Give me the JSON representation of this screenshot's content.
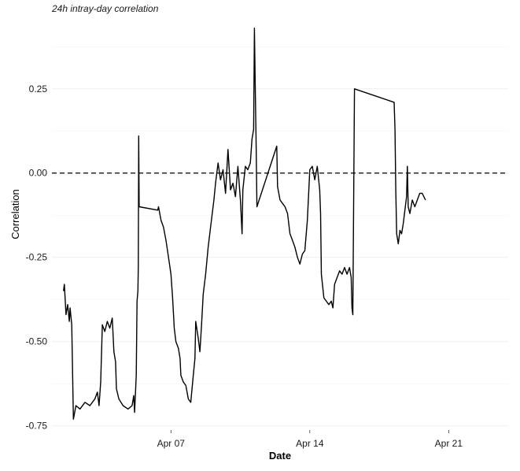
{
  "chart_data": {
    "type": "line",
    "title": "24h intray-day correlation",
    "xlabel": "Date",
    "ylabel": "Correlation",
    "grid": true,
    "legend": "none",
    "reference_line": {
      "y": 0.0,
      "style": "dashed",
      "color": "#000000"
    },
    "ylim": [
      -0.76,
      0.42
    ],
    "yticks": [
      {
        "value": 0.25,
        "label": "0.25"
      },
      {
        "value": 0.0,
        "label": "0.00"
      },
      {
        "value": -0.25,
        "label": "-0.25"
      },
      {
        "value": -0.5,
        "label": "-0.50"
      },
      {
        "value": -0.75,
        "label": "-0.75"
      }
    ],
    "xlim": [
      "2024-04-01",
      "2024-04-24"
    ],
    "xticks": [
      {
        "value": "2024-04-07",
        "label": "Apr 07"
      },
      {
        "value": "2024-04-14",
        "label": "Apr 14"
      },
      {
        "value": "2024-04-21",
        "label": "Apr 21"
      }
    ],
    "series": [
      {
        "color": "#000000",
        "points": [
          [
            "2024-04-01 14:00",
            -0.35
          ],
          [
            "2024-04-01 15:00",
            -0.33
          ],
          [
            "2024-04-01 17:00",
            -0.42
          ],
          [
            "2024-04-01 19:00",
            -0.39
          ],
          [
            "2024-04-01 21:00",
            -0.44
          ],
          [
            "2024-04-01 22:00",
            -0.4
          ],
          [
            "2024-04-02 00:00",
            -0.45
          ],
          [
            "2024-04-02 02:00",
            -0.73
          ],
          [
            "2024-04-02 05:00",
            -0.69
          ],
          [
            "2024-04-02 10:00",
            -0.7
          ],
          [
            "2024-04-02 16:00",
            -0.68
          ],
          [
            "2024-04-02 22:00",
            -0.69
          ],
          [
            "2024-04-03 04:00",
            -0.67
          ],
          [
            "2024-04-03 07:00",
            -0.65
          ],
          [
            "2024-04-03 09:00",
            -0.69
          ],
          [
            "2024-04-03 11:00",
            -0.62
          ],
          [
            "2024-04-03 13:00",
            -0.45
          ],
          [
            "2024-04-03 16:00",
            -0.47
          ],
          [
            "2024-04-03 19:00",
            -0.44
          ],
          [
            "2024-04-03 22:00",
            -0.46
          ],
          [
            "2024-04-04 01:00",
            -0.43
          ],
          [
            "2024-04-04 03:00",
            -0.53
          ],
          [
            "2024-04-04 05:00",
            -0.56
          ],
          [
            "2024-04-04 06:00",
            -0.64
          ],
          [
            "2024-04-04 09:00",
            -0.67
          ],
          [
            "2024-04-04 14:00",
            -0.69
          ],
          [
            "2024-04-04 20:00",
            -0.7
          ],
          [
            "2024-04-05 01:00",
            -0.69
          ],
          [
            "2024-04-05 03:00",
            -0.66
          ],
          [
            "2024-04-05 04:00",
            -0.71
          ],
          [
            "2024-04-05 06:00",
            -0.6
          ],
          [
            "2024-04-05 07:00",
            -0.38
          ],
          [
            "2024-04-05 08:00",
            -0.35
          ],
          [
            "2024-04-05 08:30",
            -0.28
          ],
          [
            "2024-04-05 09:00",
            0.11
          ],
          [
            "2024-04-05 09:30",
            -0.1
          ],
          [
            "2024-04-06 08:00",
            -0.11
          ],
          [
            "2024-04-06 09:00",
            -0.1
          ],
          [
            "2024-04-06 12:00",
            -0.14
          ],
          [
            "2024-04-06 15:00",
            -0.16
          ],
          [
            "2024-04-06 18:00",
            -0.2
          ],
          [
            "2024-04-06 21:00",
            -0.25
          ],
          [
            "2024-04-07 00:00",
            -0.3
          ],
          [
            "2024-04-07 02:00",
            -0.37
          ],
          [
            "2024-04-07 04:00",
            -0.46
          ],
          [
            "2024-04-07 06:00",
            -0.5
          ],
          [
            "2024-04-07 09:00",
            -0.52
          ],
          [
            "2024-04-07 11:00",
            -0.55
          ],
          [
            "2024-04-07 12:00",
            -0.6
          ],
          [
            "2024-04-07 15:00",
            -0.62
          ],
          [
            "2024-04-07 18:00",
            -0.63
          ],
          [
            "2024-04-07 21:00",
            -0.67
          ],
          [
            "2024-04-08 00:00",
            -0.68
          ],
          [
            "2024-04-08 03:00",
            -0.6
          ],
          [
            "2024-04-08 05:00",
            -0.55
          ],
          [
            "2024-04-08 06:00",
            -0.44
          ],
          [
            "2024-04-08 09:00",
            -0.49
          ],
          [
            "2024-04-08 11:00",
            -0.53
          ],
          [
            "2024-04-08 13:00",
            -0.45
          ],
          [
            "2024-04-08 15:00",
            -0.36
          ],
          [
            "2024-04-08 18:00",
            -0.3
          ],
          [
            "2024-04-08 21:00",
            -0.22
          ],
          [
            "2024-04-09 00:00",
            -0.16
          ],
          [
            "2024-04-09 02:00",
            -0.12
          ],
          [
            "2024-04-09 04:00",
            -0.08
          ],
          [
            "2024-04-09 06:00",
            -0.03
          ],
          [
            "2024-04-09 09:00",
            0.03
          ],
          [
            "2024-04-09 12:00",
            -0.02
          ],
          [
            "2024-04-09 15:00",
            0.01
          ],
          [
            "2024-04-09 18:00",
            -0.06
          ],
          [
            "2024-04-09 21:00",
            0.07
          ],
          [
            "2024-04-10 00:00",
            -0.05
          ],
          [
            "2024-04-10 03:00",
            -0.03
          ],
          [
            "2024-04-10 06:00",
            -0.07
          ],
          [
            "2024-04-10 09:00",
            0.02
          ],
          [
            "2024-04-10 12:00",
            -0.08
          ],
          [
            "2024-04-10 14:00",
            -0.18
          ],
          [
            "2024-04-10 15:00",
            -0.05
          ],
          [
            "2024-04-10 18:00",
            0.02
          ],
          [
            "2024-04-10 21:00",
            0.01
          ],
          [
            "2024-04-11 00:00",
            0.03
          ],
          [
            "2024-04-11 02:00",
            0.1
          ],
          [
            "2024-04-11 04:00",
            0.13
          ],
          [
            "2024-04-11 05:00",
            0.43
          ],
          [
            "2024-04-11 06:00",
            0.25
          ],
          [
            "2024-04-11 07:00",
            0.1
          ],
          [
            "2024-04-11 08:00",
            -0.1
          ],
          [
            "2024-04-12 08:00",
            0.08
          ],
          [
            "2024-04-12 09:00",
            -0.04
          ],
          [
            "2024-04-12 12:00",
            -0.08
          ],
          [
            "2024-04-12 15:00",
            -0.09
          ],
          [
            "2024-04-12 18:00",
            -0.1
          ],
          [
            "2024-04-12 21:00",
            -0.12
          ],
          [
            "2024-04-13 00:00",
            -0.18
          ],
          [
            "2024-04-13 03:00",
            -0.2
          ],
          [
            "2024-04-13 06:00",
            -0.22
          ],
          [
            "2024-04-13 09:00",
            -0.25
          ],
          [
            "2024-04-13 12:00",
            -0.27
          ],
          [
            "2024-04-13 15:00",
            -0.24
          ],
          [
            "2024-04-13 18:00",
            -0.23
          ],
          [
            "2024-04-13 21:00",
            -0.14
          ],
          [
            "2024-04-14 00:00",
            0.01
          ],
          [
            "2024-04-14 03:00",
            0.02
          ],
          [
            "2024-04-14 06:00",
            -0.02
          ],
          [
            "2024-04-14 09:00",
            0.02
          ],
          [
            "2024-04-14 12:00",
            -0.05
          ],
          [
            "2024-04-14 13:00",
            -0.12
          ],
          [
            "2024-04-14 14:00",
            -0.3
          ],
          [
            "2024-04-14 17:00",
            -0.37
          ],
          [
            "2024-04-14 20:00",
            -0.38
          ],
          [
            "2024-04-14 23:00",
            -0.39
          ],
          [
            "2024-04-15 02:00",
            -0.38
          ],
          [
            "2024-04-15 04:00",
            -0.4
          ],
          [
            "2024-04-15 06:00",
            -0.33
          ],
          [
            "2024-04-15 09:00",
            -0.31
          ],
          [
            "2024-04-15 12:00",
            -0.29
          ],
          [
            "2024-04-15 15:00",
            -0.3
          ],
          [
            "2024-04-15 18:00",
            -0.28
          ],
          [
            "2024-04-15 21:00",
            -0.3
          ],
          [
            "2024-04-16 00:00",
            -0.28
          ],
          [
            "2024-04-16 02:00",
            -0.31
          ],
          [
            "2024-04-16 03:00",
            -0.4
          ],
          [
            "2024-04-16 04:00",
            -0.42
          ],
          [
            "2024-04-16 05:00",
            -0.1
          ],
          [
            "2024-04-16 06:00",
            0.25
          ],
          [
            "2024-04-18 06:00",
            0.21
          ],
          [
            "2024-04-18 07:00",
            0.13
          ],
          [
            "2024-04-18 08:00",
            -0.05
          ],
          [
            "2024-04-18 09:00",
            -0.18
          ],
          [
            "2024-04-18 11:00",
            -0.21
          ],
          [
            "2024-04-18 13:00",
            -0.17
          ],
          [
            "2024-04-18 15:00",
            -0.18
          ],
          [
            "2024-04-18 17:00",
            -0.15
          ],
          [
            "2024-04-18 19:00",
            -0.11
          ],
          [
            "2024-04-18 21:00",
            -0.07
          ],
          [
            "2024-04-18 22:00",
            0.02
          ],
          [
            "2024-04-18 23:00",
            -0.1
          ],
          [
            "2024-04-19 01:00",
            -0.12
          ],
          [
            "2024-04-19 04:00",
            -0.08
          ],
          [
            "2024-04-19 07:00",
            -0.1
          ],
          [
            "2024-04-19 10:00",
            -0.08
          ],
          [
            "2024-04-19 13:00",
            -0.06
          ],
          [
            "2024-04-19 16:00",
            -0.06
          ],
          [
            "2024-04-19 20:00",
            -0.08
          ]
        ]
      }
    ]
  }
}
